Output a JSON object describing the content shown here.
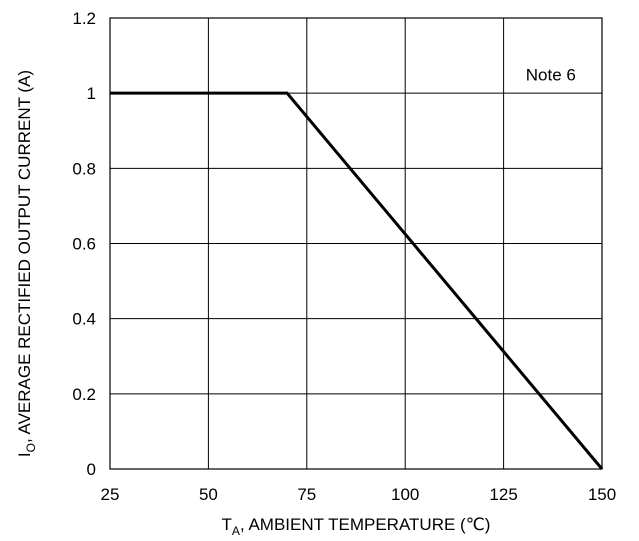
{
  "chart_data": {
    "type": "line",
    "x_axis": {
      "label_main": "T",
      "label_sub": "A",
      "label_rest": ", AMBIENT TEMPERATURE (℃)",
      "ticks": [
        25,
        50,
        75,
        100,
        125,
        150
      ],
      "range": [
        25,
        150
      ]
    },
    "y_axis": {
      "label_main": "I",
      "label_sub": "O",
      "label_rest": ", AVERAGE RECTIFIED OUTPUT CURRENT (A)",
      "ticks": [
        0,
        0.2,
        0.4,
        0.6,
        0.8,
        1,
        1.2
      ],
      "range": [
        0,
        1.2
      ]
    },
    "grid": true,
    "series": [
      {
        "x": [
          25,
          70,
          150
        ],
        "y": [
          1,
          1,
          0
        ]
      }
    ],
    "annotations": [
      {
        "text": "Note 6",
        "x": 137,
        "y": 1.05
      }
    ]
  }
}
